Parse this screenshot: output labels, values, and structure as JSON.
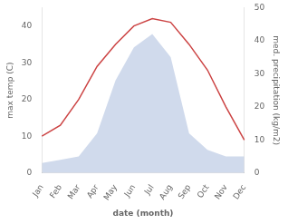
{
  "chart_data": {
    "type": "line",
    "categories": [
      "Jan",
      "Feb",
      "Mar",
      "Apr",
      "May",
      "Jun",
      "Jul",
      "Aug",
      "Sep",
      "Oct",
      "Nov",
      "Dec"
    ],
    "series": [
      {
        "type": "line",
        "color": "#cc4444",
        "values": [
          10,
          13,
          20,
          29,
          35,
          40,
          42,
          41,
          35,
          28,
          18,
          9
        ]
      },
      {
        "type": "area",
        "color": "#aabbdd",
        "axis": "y2",
        "values": [
          3,
          4,
          5,
          12,
          28,
          38,
          42,
          35,
          12,
          7,
          5,
          5
        ]
      }
    ],
    "xlabel": "date (month)",
    "ylabel": "max temp (C)",
    "y2label": "med. precipitation (kg/m2)",
    "ylim": [
      0,
      45
    ],
    "yticks": [
      0,
      10,
      20,
      30,
      40
    ],
    "y2lim": [
      0,
      50
    ],
    "y2ticks": [
      0,
      10,
      20,
      30,
      40,
      50
    ],
    "grid": false
  }
}
